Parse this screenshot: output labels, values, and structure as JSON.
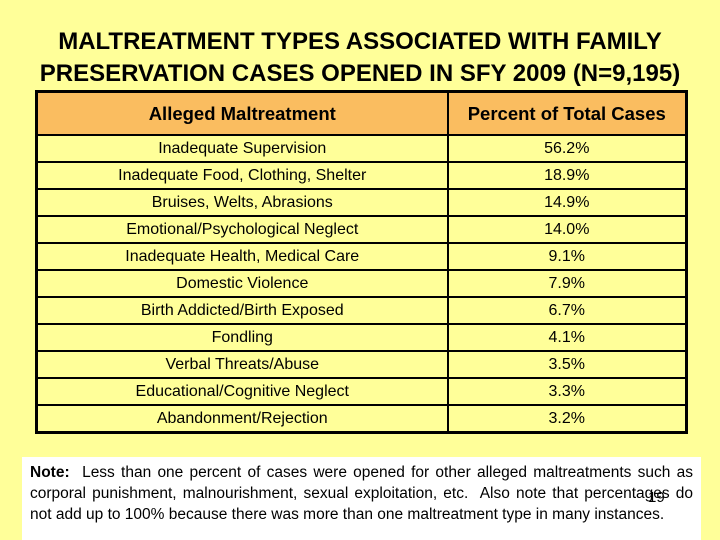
{
  "slide": {
    "title_line1": "MALTREATMENT TYPES ASSOCIATED WITH FAMILY",
    "title_line2": "PRESERVATION CASES OPENED IN SFY 2009 (N=9,195)",
    "page_number": "19",
    "colors": {
      "background": "#FFFF99",
      "table_header_fill": "#FABD60",
      "table_row_fill": "#FFFF99",
      "table_border": "#000000",
      "note_background": "#FFFFFF",
      "text": "#000000"
    }
  },
  "table": {
    "columns": [
      "Alleged Maltreatment",
      "Percent of Total Cases"
    ],
    "rows": [
      [
        "Inadequate Supervision",
        "56.2%"
      ],
      [
        "Inadequate Food, Clothing, Shelter",
        "18.9%"
      ],
      [
        "Bruises, Welts, Abrasions",
        "14.9%"
      ],
      [
        "Emotional/Psychological Neglect",
        "14.0%"
      ],
      [
        "Inadequate Health, Medical Care",
        "9.1%"
      ],
      [
        "Domestic Violence",
        "7.9%"
      ],
      [
        "Birth Addicted/Birth Exposed",
        "6.7%"
      ],
      [
        "Fondling",
        "4.1%"
      ],
      [
        "Verbal Threats/Abuse",
        "3.5%"
      ],
      [
        "Educational/Cognitive Neglect",
        "3.3%"
      ],
      [
        "Abandonment/Rejection",
        "3.2%"
      ]
    ]
  },
  "note": {
    "label": "Note:",
    "text": "  Less than one percent of cases were opened for other alleged maltreatments such as corporal punishment, malnourishment, sexual exploitation, etc.  Also note that percentages do not add up to 100% because there was more than one maltreatment type in many instances."
  }
}
